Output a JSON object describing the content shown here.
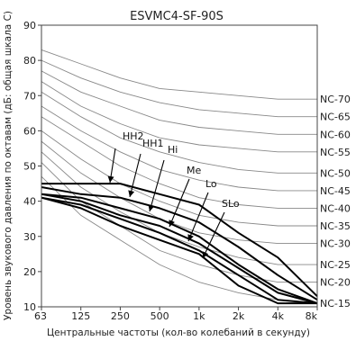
{
  "chart_data": {
    "type": "line",
    "title": "ESVMC4-SF-90S",
    "xlabel": "Центральные частоты (кол-во колебаний в секунду)",
    "ylabel": "Уровень звукового давления по октавам (дБ: общая шкала С)",
    "x": [
      63,
      125,
      250,
      500,
      1000,
      2000,
      4000,
      8000
    ],
    "x_tick_labels": [
      "63",
      "125",
      "250",
      "500",
      "1k",
      "2k",
      "4k",
      "8k"
    ],
    "x_scale": "log2",
    "ylim": [
      10,
      90
    ],
    "y_ticks": [
      10,
      20,
      30,
      40,
      50,
      60,
      70,
      80,
      90
    ],
    "grid": false,
    "nc_curves": [
      {
        "name": "NC-70",
        "values": [
          83,
          79,
          75,
          72,
          71,
          70,
          69,
          69
        ]
      },
      {
        "name": "NC-65",
        "values": [
          80,
          75,
          71,
          68,
          66,
          65,
          64,
          64
        ]
      },
      {
        "name": "NC-60",
        "values": [
          77,
          71,
          67,
          63,
          61,
          60,
          59,
          59
        ]
      },
      {
        "name": "NC-55",
        "values": [
          74,
          67,
          62,
          58,
          56,
          55,
          54,
          54
        ]
      },
      {
        "name": "NC-50",
        "values": [
          71,
          64,
          58,
          54,
          51,
          49,
          48,
          48
        ]
      },
      {
        "name": "NC-45",
        "values": [
          67,
          60,
          54,
          49,
          46,
          44,
          43,
          43
        ]
      },
      {
        "name": "NC-40",
        "values": [
          64,
          57,
          50,
          45,
          41,
          39,
          38,
          38
        ]
      },
      {
        "name": "NC-35",
        "values": [
          60,
          52,
          45,
          40,
          36,
          34,
          33,
          33
        ]
      },
      {
        "name": "NC-30",
        "values": [
          57,
          48,
          41,
          35,
          31,
          29,
          28,
          28
        ]
      },
      {
        "name": "NC-25",
        "values": [
          54,
          44,
          37,
          31,
          27,
          24,
          22,
          22
        ]
      },
      {
        "name": "NC-20",
        "values": [
          51,
          40,
          33,
          26,
          22,
          19,
          17,
          17
        ]
      },
      {
        "name": "NC-15",
        "values": [
          47,
          36,
          29,
          22,
          17,
          14,
          12,
          11
        ]
      }
    ],
    "series": [
      {
        "name": "HH2",
        "values": [
          45,
          45,
          45,
          42,
          39,
          31,
          24,
          13
        ]
      },
      {
        "name": "HH1",
        "values": [
          44,
          42,
          41,
          38,
          34,
          27,
          19,
          12
        ]
      },
      {
        "name": "Hi",
        "values": [
          42,
          41,
          38,
          35,
          30,
          22,
          15,
          11
        ]
      },
      {
        "name": "Me",
        "values": [
          42,
          40,
          36,
          33,
          28,
          21,
          14,
          11
        ]
      },
      {
        "name": "Lo",
        "values": [
          41,
          39,
          35,
          31,
          26,
          19,
          12,
          11
        ]
      },
      {
        "name": "SLo",
        "values": [
          41,
          38,
          33,
          29,
          25,
          16,
          11,
          11
        ]
      }
    ],
    "colors": {
      "nc_curve": "#888888",
      "series": "#000000",
      "axis": "#444444"
    }
  }
}
